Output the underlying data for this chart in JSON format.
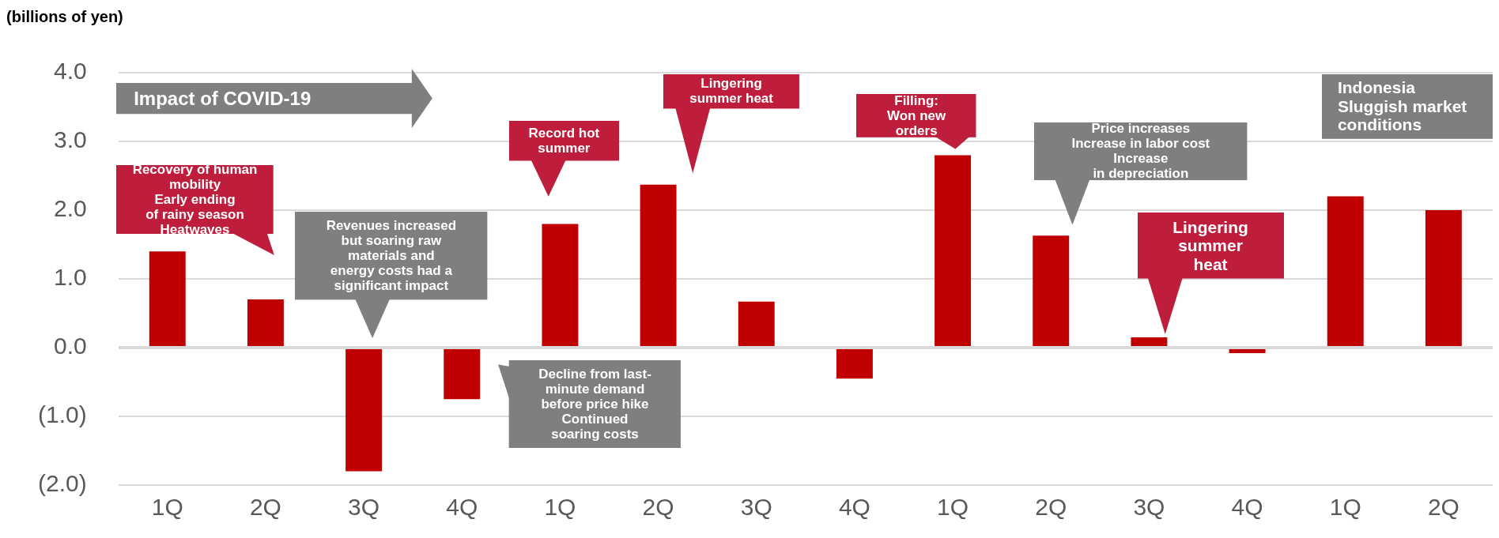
{
  "chart_data": {
    "type": "bar",
    "ylabel": "(billions of yen)",
    "categories": [
      "1Q",
      "2Q",
      "3Q",
      "4Q",
      "1Q",
      "2Q",
      "3Q",
      "4Q",
      "1Q",
      "2Q",
      "3Q",
      "4Q",
      "1Q",
      "2Q"
    ],
    "values": [
      1.4,
      0.7,
      -1.8,
      -0.75,
      1.8,
      2.37,
      0.67,
      -0.45,
      2.8,
      1.63,
      0.15,
      -0.08,
      2.2,
      2.0
    ],
    "color": "#c00000",
    "ylim": [
      -2,
      4
    ],
    "yticks": [
      {
        "value": -2,
        "label": "(2.0)"
      },
      {
        "value": -1,
        "label": "(1.0)"
      },
      {
        "value": 0,
        "label": "0.0"
      },
      {
        "value": 1,
        "label": "1.0"
      },
      {
        "value": 2,
        "label": "2.0"
      },
      {
        "value": 3,
        "label": "3.0"
      },
      {
        "value": 4,
        "label": "4.0"
      }
    ],
    "grid": "y",
    "legend": false,
    "annotations": [
      "Impact of COVID-19",
      "Recovery of human\nmobility\nEarly ending\nof rainy season\nHeatwaves",
      "Revenues increased\nbut soaring raw\nmaterials and\nenergy costs had a\nsignificant impact",
      "Decline from last-\nminute demand\nbefore price hike\nContinued\nsoaring costs",
      "Record hot\nsummer",
      "Lingering\nsummer heat",
      "Filling:\nWon new\norders",
      "Price increases\nIncrease in labor cost\nIncrease\nin depreciation",
      "Lingering\nsummer\nheat",
      "Indonesia\nSluggish market\nconditions"
    ]
  }
}
